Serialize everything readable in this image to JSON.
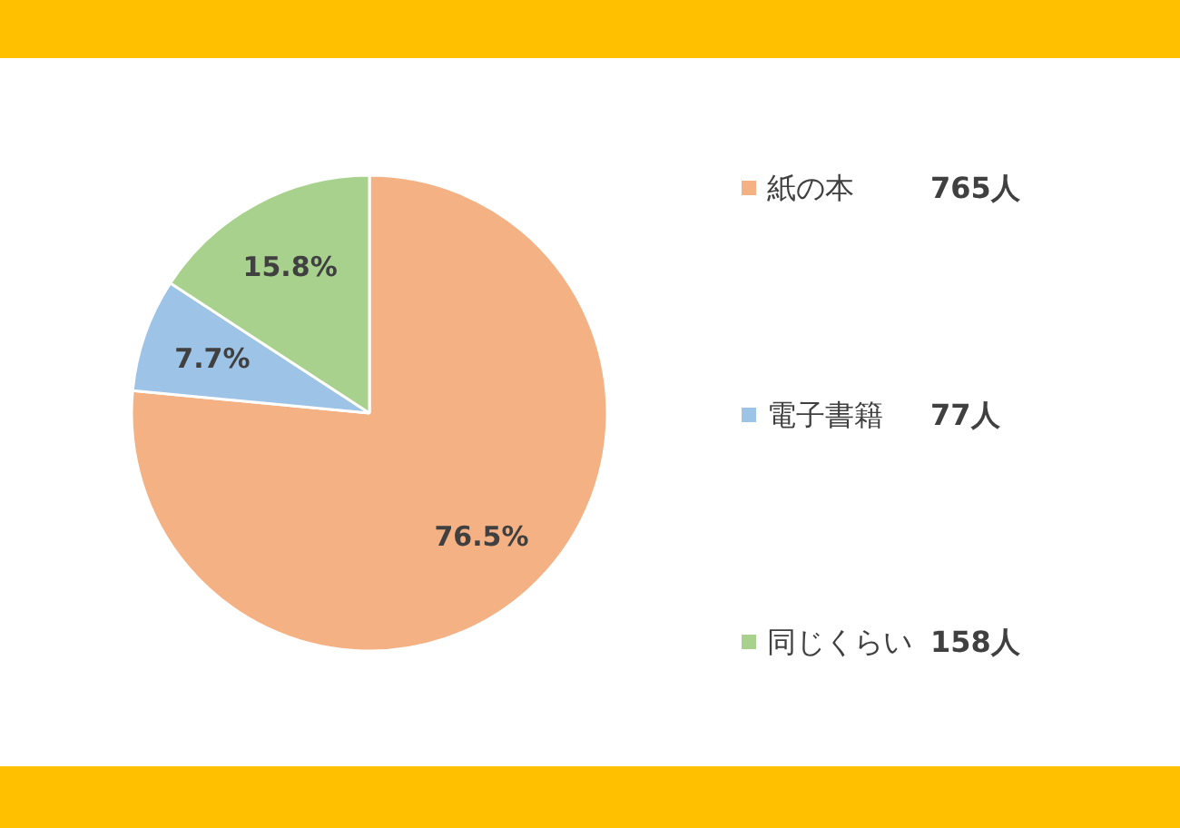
{
  "chart_data": {
    "type": "pie",
    "categories": [
      "紙の本",
      "電子書籍",
      "同じくらい"
    ],
    "values": [
      76.5,
      7.7,
      15.8
    ],
    "colors": [
      "#f4b183",
      "#9dc3e6",
      "#a9d18e"
    ],
    "value_labels": [
      "76.5%",
      "7.7%",
      "15.8%"
    ],
    "annotations": [
      {
        "text": "765人",
        "x": "紙の本"
      },
      {
        "text": "77人",
        "x": "電子書籍"
      },
      {
        "text": "158人",
        "x": "同じくらい"
      }
    ],
    "legend": "right"
  }
}
